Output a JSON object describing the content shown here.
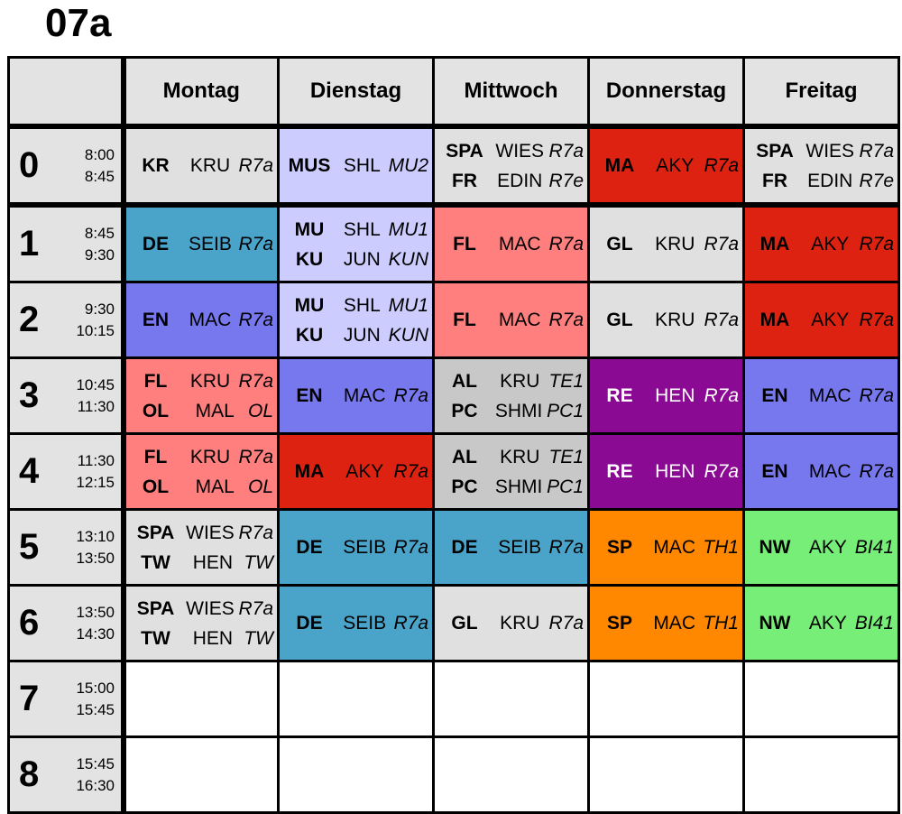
{
  "class_name": "07a",
  "days": [
    "Montag",
    "Dienstag",
    "Mittwoch",
    "Donnerstag",
    "Freitag"
  ],
  "periods": [
    {
      "num": "0",
      "start": "8:00",
      "end": "8:45"
    },
    {
      "num": "1",
      "start": "8:45",
      "end": "9:30"
    },
    {
      "num": "2",
      "start": "9:30",
      "end": "10:15"
    },
    {
      "num": "3",
      "start": "10:45",
      "end": "11:30"
    },
    {
      "num": "4",
      "start": "11:30",
      "end": "12:15"
    },
    {
      "num": "5",
      "start": "13:10",
      "end": "13:50"
    },
    {
      "num": "6",
      "start": "13:50",
      "end": "14:30"
    },
    {
      "num": "7",
      "start": "15:00",
      "end": "15:45"
    },
    {
      "num": "8",
      "start": "15:45",
      "end": "16:30"
    }
  ],
  "colors": {
    "grey": "#e0e0e0",
    "lavender": "#ccccff",
    "red": "#dd2211",
    "blue": "#4aa3c9",
    "pink": "#ff7f7f",
    "periwinkle": "#7777ee",
    "purple": "#8b0a93",
    "orange": "#ff8800",
    "green": "#77ee77",
    "silver": "#c8c8c8",
    "white": "#ffffff"
  },
  "grid": [
    [
      {
        "color": "grey",
        "lessons": [
          {
            "subject": "KR",
            "teacher": "KRU",
            "room": "R7a"
          }
        ]
      },
      {
        "color": "lavender",
        "lessons": [
          {
            "subject": "MUS",
            "teacher": "SHL",
            "room": "MU2"
          }
        ]
      },
      {
        "color": "grey",
        "lessons": [
          {
            "subject": "SPA",
            "teacher": "WIES",
            "room": "R7a"
          },
          {
            "subject": "FR",
            "teacher": "EDIN",
            "room": "R7e"
          }
        ]
      },
      {
        "color": "red",
        "lessons": [
          {
            "subject": "MA",
            "teacher": "AKY",
            "room": "R7a"
          }
        ]
      },
      {
        "color": "grey",
        "lessons": [
          {
            "subject": "SPA",
            "teacher": "WIES",
            "room": "R7a"
          },
          {
            "subject": "FR",
            "teacher": "EDIN",
            "room": "R7e"
          }
        ]
      }
    ],
    [
      {
        "color": "blue",
        "lessons": [
          {
            "subject": "DE",
            "teacher": "SEIB",
            "room": "R7a"
          }
        ]
      },
      {
        "color": "lavender",
        "lessons": [
          {
            "subject": "MU",
            "teacher": "SHL",
            "room": "MU1"
          },
          {
            "subject": "KU",
            "teacher": "JUN",
            "room": "KUN"
          }
        ]
      },
      {
        "color": "pink",
        "lessons": [
          {
            "subject": "FL",
            "teacher": "MAC",
            "room": "R7a"
          }
        ]
      },
      {
        "color": "grey",
        "lessons": [
          {
            "subject": "GL",
            "teacher": "KRU",
            "room": "R7a"
          }
        ]
      },
      {
        "color": "red",
        "lessons": [
          {
            "subject": "MA",
            "teacher": "AKY",
            "room": "R7a"
          }
        ]
      }
    ],
    [
      {
        "color": "periwinkle",
        "lessons": [
          {
            "subject": "EN",
            "teacher": "MAC",
            "room": "R7a"
          }
        ]
      },
      {
        "color": "lavender",
        "lessons": [
          {
            "subject": "MU",
            "teacher": "SHL",
            "room": "MU1"
          },
          {
            "subject": "KU",
            "teacher": "JUN",
            "room": "KUN"
          }
        ]
      },
      {
        "color": "pink",
        "lessons": [
          {
            "subject": "FL",
            "teacher": "MAC",
            "room": "R7a"
          }
        ]
      },
      {
        "color": "grey",
        "lessons": [
          {
            "subject": "GL",
            "teacher": "KRU",
            "room": "R7a"
          }
        ]
      },
      {
        "color": "red",
        "lessons": [
          {
            "subject": "MA",
            "teacher": "AKY",
            "room": "R7a"
          }
        ]
      }
    ],
    [
      {
        "color": "pink",
        "lessons": [
          {
            "subject": "FL",
            "teacher": "KRU",
            "room": "R7a"
          },
          {
            "subject": "OL",
            "teacher": "MAL",
            "room": "OL"
          }
        ]
      },
      {
        "color": "periwinkle",
        "lessons": [
          {
            "subject": "EN",
            "teacher": "MAC",
            "room": "R7a"
          }
        ]
      },
      {
        "color": "silver",
        "lessons": [
          {
            "subject": "AL",
            "teacher": "KRU",
            "room": "TE1"
          },
          {
            "subject": "PC",
            "teacher": "SHMI",
            "room": "PC1"
          }
        ]
      },
      {
        "color": "purple",
        "white_text": true,
        "lessons": [
          {
            "subject": "RE",
            "teacher": "HEN",
            "room": "R7a"
          }
        ]
      },
      {
        "color": "periwinkle",
        "lessons": [
          {
            "subject": "EN",
            "teacher": "MAC",
            "room": "R7a"
          }
        ]
      }
    ],
    [
      {
        "color": "pink",
        "lessons": [
          {
            "subject": "FL",
            "teacher": "KRU",
            "room": "R7a"
          },
          {
            "subject": "OL",
            "teacher": "MAL",
            "room": "OL"
          }
        ]
      },
      {
        "color": "red",
        "lessons": [
          {
            "subject": "MA",
            "teacher": "AKY",
            "room": "R7a"
          }
        ]
      },
      {
        "color": "silver",
        "lessons": [
          {
            "subject": "AL",
            "teacher": "KRU",
            "room": "TE1"
          },
          {
            "subject": "PC",
            "teacher": "SHMI",
            "room": "PC1"
          }
        ]
      },
      {
        "color": "purple",
        "white_text": true,
        "lessons": [
          {
            "subject": "RE",
            "teacher": "HEN",
            "room": "R7a"
          }
        ]
      },
      {
        "color": "periwinkle",
        "lessons": [
          {
            "subject": "EN",
            "teacher": "MAC",
            "room": "R7a"
          }
        ]
      }
    ],
    [
      {
        "color": "grey",
        "lessons": [
          {
            "subject": "SPA",
            "teacher": "WIES",
            "room": "R7a"
          },
          {
            "subject": "TW",
            "teacher": "HEN",
            "room": "TW"
          }
        ]
      },
      {
        "color": "blue",
        "lessons": [
          {
            "subject": "DE",
            "teacher": "SEIB",
            "room": "R7a"
          }
        ]
      },
      {
        "color": "blue",
        "lessons": [
          {
            "subject": "DE",
            "teacher": "SEIB",
            "room": "R7a"
          }
        ]
      },
      {
        "color": "orange",
        "lessons": [
          {
            "subject": "SP",
            "teacher": "MAC",
            "room": "TH1"
          }
        ]
      },
      {
        "color": "green",
        "lessons": [
          {
            "subject": "NW",
            "teacher": "AKY",
            "room": "BI41"
          }
        ]
      }
    ],
    [
      {
        "color": "grey",
        "lessons": [
          {
            "subject": "SPA",
            "teacher": "WIES",
            "room": "R7a"
          },
          {
            "subject": "TW",
            "teacher": "HEN",
            "room": "TW"
          }
        ]
      },
      {
        "color": "blue",
        "lessons": [
          {
            "subject": "DE",
            "teacher": "SEIB",
            "room": "R7a"
          }
        ]
      },
      {
        "color": "grey",
        "lessons": [
          {
            "subject": "GL",
            "teacher": "KRU",
            "room": "R7a"
          }
        ]
      },
      {
        "color": "orange",
        "lessons": [
          {
            "subject": "SP",
            "teacher": "MAC",
            "room": "TH1"
          }
        ]
      },
      {
        "color": "green",
        "lessons": [
          {
            "subject": "NW",
            "teacher": "AKY",
            "room": "BI41"
          }
        ]
      }
    ],
    [
      {
        "color": "white",
        "lessons": []
      },
      {
        "color": "white",
        "lessons": []
      },
      {
        "color": "white",
        "lessons": []
      },
      {
        "color": "white",
        "lessons": []
      },
      {
        "color": "white",
        "lessons": []
      }
    ],
    [
      {
        "color": "white",
        "lessons": []
      },
      {
        "color": "white",
        "lessons": []
      },
      {
        "color": "white",
        "lessons": []
      },
      {
        "color": "white",
        "lessons": []
      },
      {
        "color": "white",
        "lessons": []
      }
    ]
  ]
}
